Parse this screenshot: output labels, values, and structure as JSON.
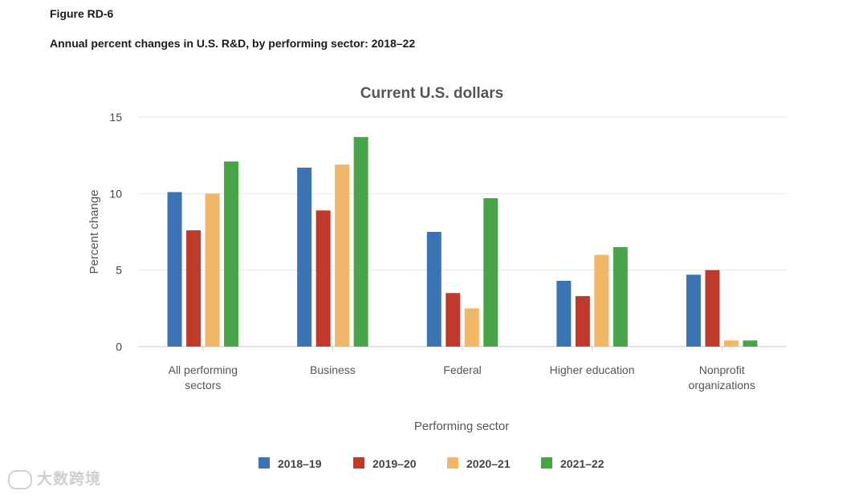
{
  "figure_label": "Figure RD-6",
  "figure_title": "Annual percent changes in U.S. R&D, by performing sector: 2018–22",
  "watermark": "大数跨境",
  "chart_data": {
    "type": "bar",
    "title": "Current U.S. dollars",
    "xlabel": "Performing sector",
    "ylabel": "Percent change",
    "ylim": [
      0,
      15
    ],
    "yticks": [
      0,
      5,
      10,
      15
    ],
    "categories": [
      [
        "All performing",
        "sectors"
      ],
      [
        "Business"
      ],
      [
        "Federal"
      ],
      [
        "Higher education"
      ],
      [
        "Nonprofit",
        "organizations"
      ]
    ],
    "series": [
      {
        "name": "2018–19",
        "color": "#3b74b5",
        "values": [
          10.1,
          11.7,
          7.5,
          4.3,
          4.7
        ]
      },
      {
        "name": "2019–20",
        "color": "#c0392b",
        "values": [
          7.6,
          8.9,
          3.5,
          3.3,
          5.0
        ]
      },
      {
        "name": "2020–21",
        "color": "#f2b766",
        "values": [
          10.0,
          11.9,
          2.5,
          6.0,
          0.4
        ]
      },
      {
        "name": "2021–22",
        "color": "#47a447",
        "values": [
          12.1,
          13.7,
          9.7,
          6.5,
          0.4
        ]
      }
    ],
    "grid": true,
    "legend_position": "bottom"
  }
}
